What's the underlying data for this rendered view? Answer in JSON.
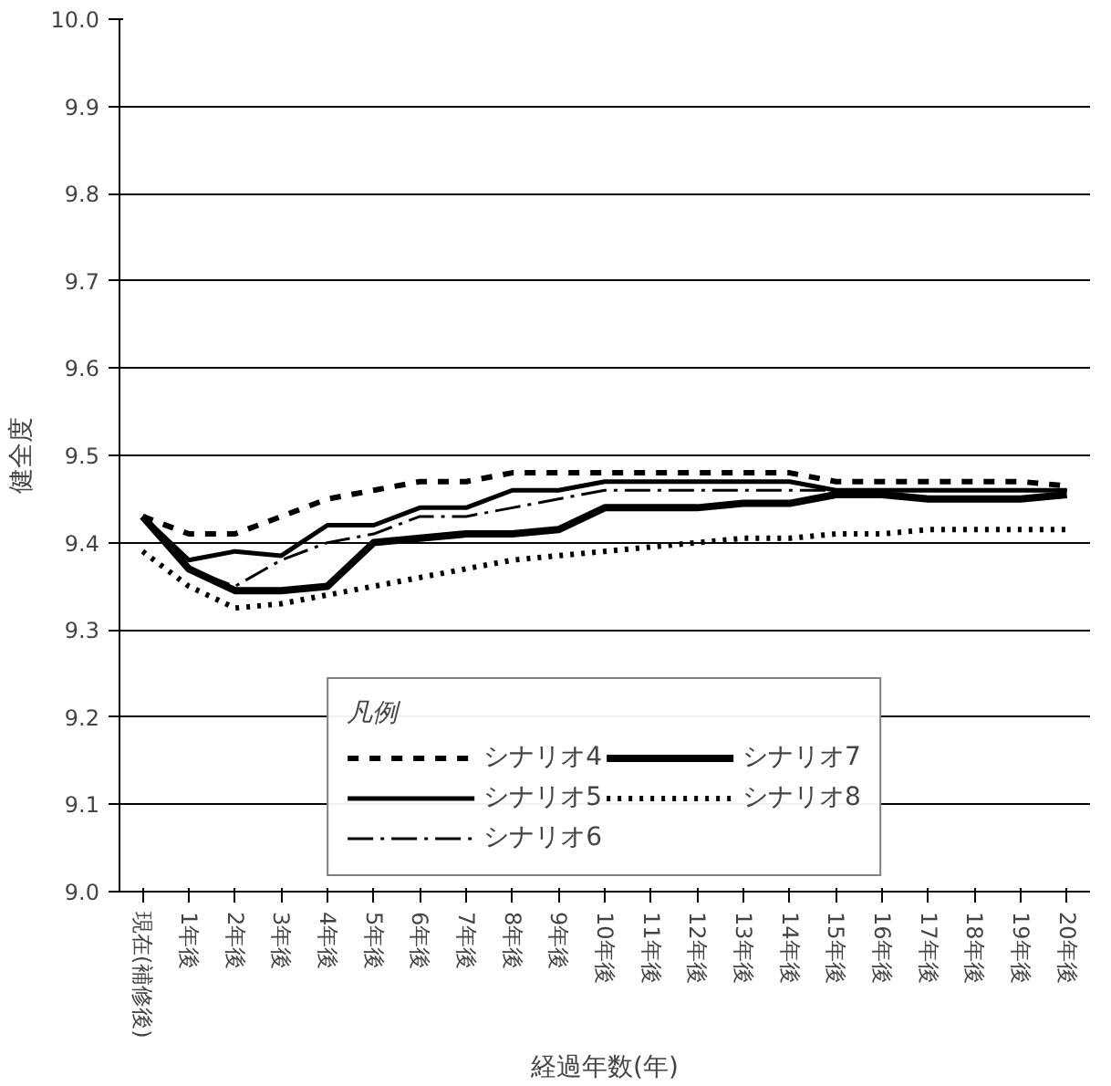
{
  "chart_data": {
    "type": "line",
    "xlabel": "経過年数(年)",
    "ylabel": "健全度",
    "legend_title": "凡例",
    "categories": [
      "現在(補修後)",
      "1年後",
      "2年後",
      "3年後",
      "4年後",
      "5年後",
      "6年後",
      "7年後",
      "8年後",
      "9年後",
      "10年後",
      "11年後",
      "12年後",
      "13年後",
      "14年後",
      "15年後",
      "16年後",
      "17年後",
      "18年後",
      "19年後",
      "20年後"
    ],
    "ylim": [
      9.0,
      10.0
    ],
    "yticks": [
      "9.0",
      9.1,
      9.2,
      9.3,
      9.4,
      9.5,
      9.6,
      9.7,
      9.8,
      9.9,
      "10.0"
    ],
    "grid": "y",
    "legend": "bottom",
    "series": [
      {
        "name": "シナリオ4",
        "color": "#000000",
        "line_style": "dashed",
        "values": [
          9.43,
          9.41,
          9.41,
          9.43,
          9.45,
          9.46,
          9.47,
          9.47,
          9.48,
          9.48,
          9.48,
          9.48,
          9.48,
          9.48,
          9.48,
          9.47,
          9.47,
          9.47,
          9.47,
          9.47,
          9.465
        ]
      },
      {
        "name": "シナリオ5",
        "color": "#000000",
        "line_style": "solid",
        "values": [
          9.43,
          9.38,
          9.39,
          9.385,
          9.42,
          9.42,
          9.44,
          9.44,
          9.46,
          9.46,
          9.47,
          9.47,
          9.47,
          9.47,
          9.47,
          9.46,
          9.46,
          9.46,
          9.46,
          9.46,
          9.46
        ]
      },
      {
        "name": "シナリオ6",
        "color": "#000000",
        "line_style": "dashed",
        "values": [
          9.43,
          9.37,
          9.35,
          9.38,
          9.4,
          9.41,
          9.43,
          9.43,
          9.44,
          9.45,
          9.46,
          9.46,
          9.46,
          9.46,
          9.46,
          9.46,
          9.46,
          9.46,
          9.46,
          9.46,
          9.46
        ]
      },
      {
        "name": "シナリオ7",
        "color": "#000000",
        "line_style": "solid",
        "values": [
          9.43,
          9.37,
          9.345,
          9.345,
          9.35,
          9.4,
          9.405,
          9.41,
          9.41,
          9.415,
          9.44,
          9.44,
          9.44,
          9.445,
          9.445,
          9.455,
          9.455,
          9.45,
          9.45,
          9.45,
          9.455
        ]
      },
      {
        "name": "シナリオ8",
        "color": "#000000",
        "line_style": "dotted",
        "values": [
          9.39,
          9.35,
          9.325,
          9.33,
          9.34,
          9.35,
          9.36,
          9.37,
          9.38,
          9.385,
          9.39,
          9.395,
          9.4,
          9.405,
          9.405,
          9.41,
          9.41,
          9.415,
          9.415,
          9.415,
          9.415
        ]
      }
    ]
  }
}
